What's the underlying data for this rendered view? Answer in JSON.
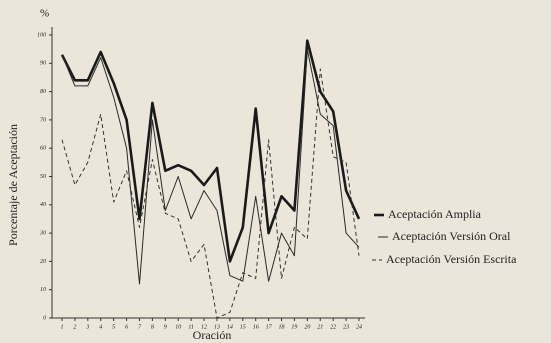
{
  "chart_data": {
    "type": "line",
    "y_unit": "%",
    "xlabel": "Oración",
    "ylabel": "Porcentaje de Aceptación",
    "categories": [
      "1",
      "2",
      "3",
      "4",
      "5",
      "6",
      "7",
      "8",
      "9",
      "10",
      "11",
      "12",
      "13",
      "14",
      "15",
      "16",
      "17",
      "18",
      "19",
      "20",
      "21",
      "22",
      "23",
      "24"
    ],
    "series": [
      {
        "name": "Aceptación Amplia",
        "color": "#1a1a1a",
        "style": "thick",
        "values": [
          93,
          84,
          84,
          94,
          83,
          70,
          35,
          76,
          52,
          54,
          52,
          47,
          53,
          20,
          32,
          74,
          30,
          43,
          38,
          98,
          80,
          73,
          45,
          35
        ]
      },
      {
        "name": "Aceptación Versión Oral",
        "color": "#2a2a2a",
        "style": "thin",
        "values": [
          93,
          82,
          82,
          92,
          78,
          60,
          12,
          70,
          38,
          50,
          35,
          45,
          38,
          15,
          13,
          43,
          13,
          30,
          22,
          95,
          72,
          68,
          30,
          25
        ]
      },
      {
        "name": "Aceptación Versión Escrita",
        "color": "#333333",
        "style": "dashed",
        "values": [
          63,
          47,
          55,
          72,
          41,
          52,
          32,
          56,
          37,
          35,
          20,
          26,
          0,
          2,
          16,
          14,
          63,
          14,
          32,
          28,
          88,
          57,
          55,
          22
        ]
      }
    ],
    "ylim": [
      0,
      100
    ],
    "yticks": [
      0,
      10,
      20,
      30,
      40,
      50,
      60,
      70,
      80,
      90,
      100
    ],
    "legend": "right"
  }
}
